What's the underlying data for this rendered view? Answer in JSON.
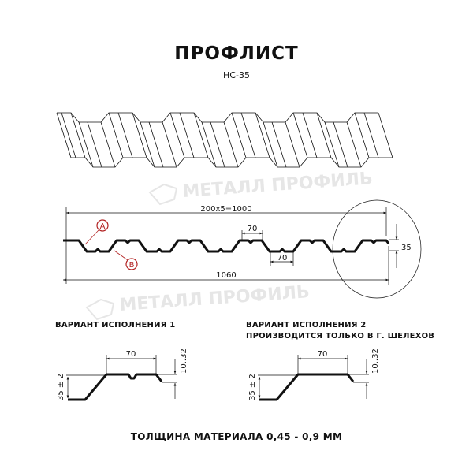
{
  "title": "ПРОФЛИСТ",
  "subtitle": "НС-35",
  "watermark": "МЕТАЛЛ ПРОФИЛЬ",
  "profile": {
    "dim_pitch": "200x5=1000",
    "dim_total": "1060",
    "dim_top": "70",
    "dim_bottom": "70",
    "dim_height": "35",
    "marker_a": "A",
    "marker_b": "B"
  },
  "variant1": {
    "caption": "ВАРИАНТ ИСПОЛНЕНИЯ 1",
    "dim_width": "70",
    "dim_height": "35 ± 2",
    "dim_edge": "10..32"
  },
  "variant2": {
    "caption_line1": "ВАРИАНТ ИСПОЛНЕНИЯ 2",
    "caption_line2": "ПРОИЗВОДИТСЯ ТОЛЬКО В Г. ШЕЛЕХОВ",
    "dim_width": "70",
    "dim_height": "35 ± 2",
    "dim_edge": "10..32"
  },
  "footer": "ТОЛЩИНА МАТЕРИАЛА 0,45 - 0,9 ММ",
  "colors": {
    "line": "#111111",
    "marker": "#b22222",
    "watermark": "#e4e4e4"
  }
}
